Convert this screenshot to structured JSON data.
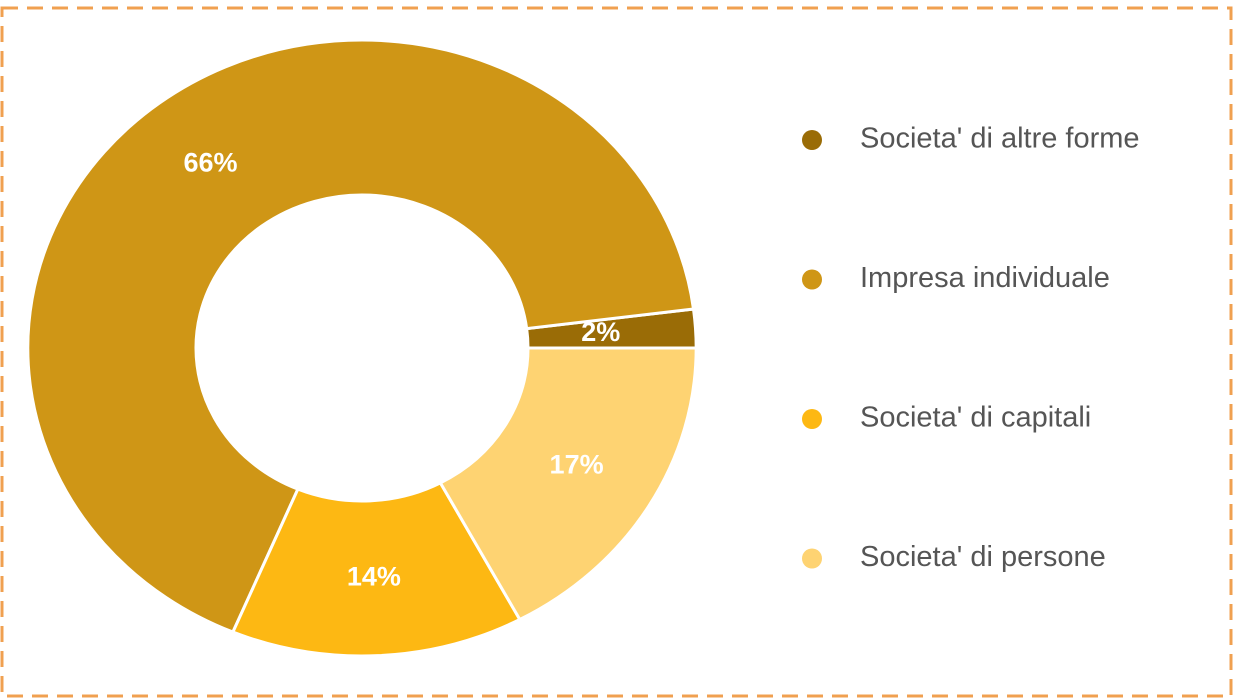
{
  "chart_data": {
    "type": "pie",
    "categories": [
      "Societa' di altre forme",
      "Impresa individuale",
      "Societa' di capitali",
      "Societa' di persone"
    ],
    "values": [
      2,
      66,
      14,
      17
    ],
    "value_labels": [
      "2%",
      "66%",
      "14%",
      "17%"
    ],
    "colors": [
      "#9a6c06",
      "#cf9616",
      "#fdb813",
      "#fed372"
    ],
    "legend": "right"
  }
}
